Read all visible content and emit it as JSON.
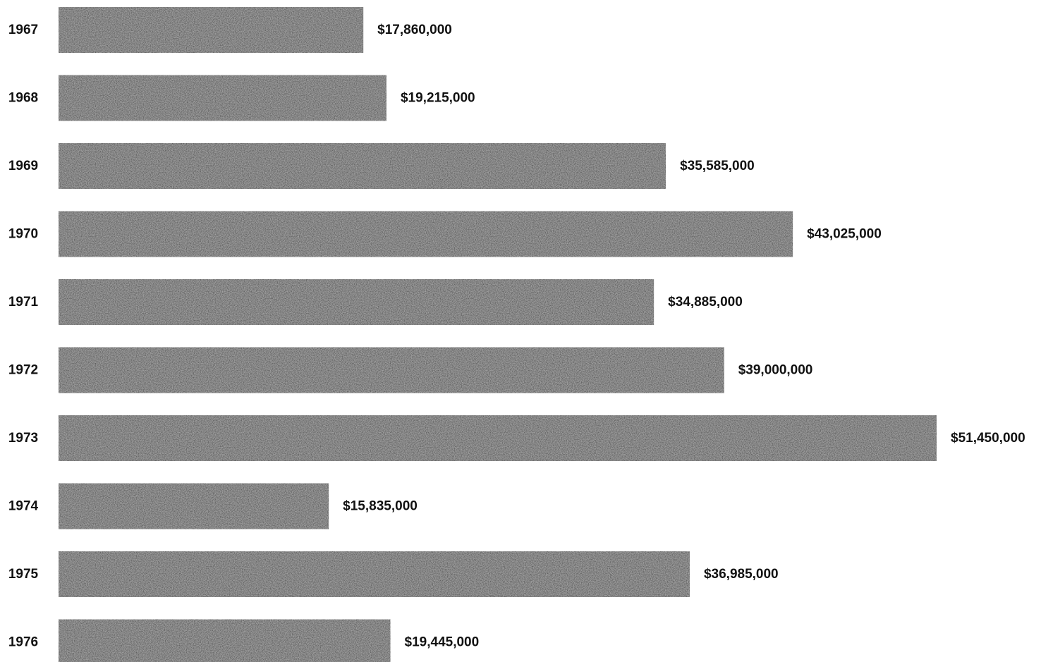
{
  "chart_data": {
    "type": "bar",
    "orientation": "horizontal",
    "categories": [
      "1967",
      "1968",
      "1969",
      "1970",
      "1971",
      "1972",
      "1973",
      "1974",
      "1975",
      "1976"
    ],
    "values": [
      17860000,
      19215000,
      35585000,
      43025000,
      34885000,
      39000000,
      51450000,
      15835000,
      36985000,
      19445000
    ],
    "value_labels": [
      "$17,860,000",
      "$19,215,000",
      "$35,585,000",
      "$43,025,000",
      "$34,885,000",
      "$39,000,000",
      "$51,450,000",
      "$15,835,000",
      "$36,985,000",
      "$19,445,000"
    ],
    "title": "",
    "xlabel": "",
    "ylabel": "",
    "grid": false,
    "legend": "none",
    "bar_color": "#5a5a5a"
  }
}
